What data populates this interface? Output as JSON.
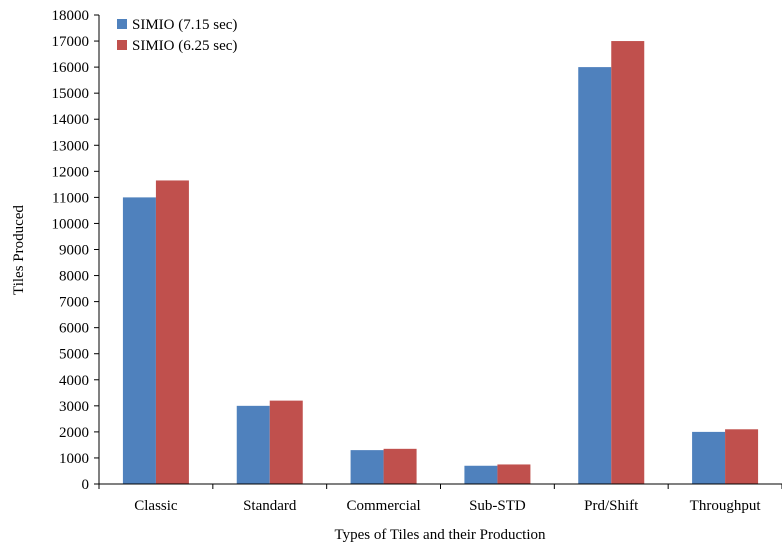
{
  "chart_data": {
    "type": "bar",
    "title": "",
    "xlabel": "Types of Tiles and their Production",
    "ylabel": "Tiles Produced",
    "ylim": [
      0,
      18000
    ],
    "ytick_step": 1000,
    "grid": false,
    "legend_position": "top-left",
    "categories": [
      "Classic",
      "Standard",
      "Commercial",
      "Sub-STD",
      "Prd/Shift",
      "Throughput"
    ],
    "series": [
      {
        "name": "SIMIO (7.15 sec)",
        "color": "#4F81BD",
        "values": [
          11000,
          3000,
          1300,
          700,
          16000,
          2000
        ]
      },
      {
        "name": "SIMIO (6.25 sec)",
        "color": "#C0504D",
        "values": [
          11650,
          3200,
          1350,
          750,
          17000,
          2100
        ]
      }
    ]
  }
}
